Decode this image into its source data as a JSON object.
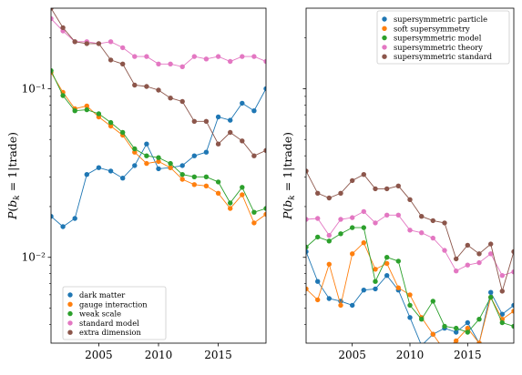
{
  "chart_data": [
    {
      "type": "line",
      "ylabel": "$P(b_k = 1|\\mathrm{trade})$",
      "ylabel_display": "P(b",
      "yscale": "log",
      "xlim": [
        2001,
        2019
      ],
      "ylim": [
        0.0031,
        0.3
      ],
      "xticks": [
        2005,
        2010,
        2015
      ],
      "yticks": [
        {
          "value": 0.1,
          "label": "10⁻¹"
        },
        {
          "value": 0.01,
          "label": "10⁻²"
        }
      ],
      "legend_position": "lower-left",
      "x": [
        2001,
        2002,
        2003,
        2004,
        2005,
        2006,
        2007,
        2008,
        2009,
        2010,
        2011,
        2012,
        2013,
        2014,
        2015,
        2016,
        2017,
        2018,
        2019
      ],
      "series": [
        {
          "name": "dark matter",
          "color": "#1f77b4",
          "values": [
            0.0175,
            0.0152,
            0.017,
            0.031,
            0.034,
            0.0325,
            0.0295,
            0.035,
            0.047,
            0.0335,
            0.034,
            0.035,
            0.04,
            0.042,
            0.068,
            0.065,
            0.082,
            0.074,
            0.1
          ]
        },
        {
          "name": "gauge interaction",
          "color": "#ff7f0e",
          "values": [
            0.125,
            0.095,
            0.076,
            0.079,
            0.068,
            0.06,
            0.053,
            0.042,
            0.036,
            0.037,
            0.034,
            0.029,
            0.027,
            0.0265,
            0.024,
            0.0195,
            0.0235,
            0.016,
            0.018
          ]
        },
        {
          "name": "weak scale",
          "color": "#2ca02c",
          "values": [
            0.128,
            0.091,
            0.074,
            0.075,
            0.071,
            0.063,
            0.055,
            0.044,
            0.04,
            0.039,
            0.036,
            0.031,
            0.03,
            0.03,
            0.028,
            0.021,
            0.026,
            0.0185,
            0.0195
          ]
        },
        {
          "name": "standard model",
          "color": "#e377c2",
          "values": [
            0.26,
            0.22,
            0.19,
            0.19,
            0.185,
            0.19,
            0.175,
            0.155,
            0.155,
            0.14,
            0.14,
            0.135,
            0.155,
            0.15,
            0.155,
            0.145,
            0.155,
            0.155,
            0.145
          ]
        },
        {
          "name": "extra dimension",
          "color": "#8c564b",
          "values": [
            0.3,
            0.23,
            0.19,
            0.185,
            0.185,
            0.148,
            0.14,
            0.105,
            0.103,
            0.098,
            0.088,
            0.084,
            0.064,
            0.064,
            0.047,
            0.055,
            0.049,
            0.04,
            0.043
          ]
        }
      ]
    },
    {
      "type": "line",
      "ylabel": "$P(b_k = 1|\\mathrm{trade})$",
      "ylabel_display": "P(b",
      "yscale": "log",
      "xlim": [
        2001,
        2019
      ],
      "ylim": [
        0.0031,
        0.3
      ],
      "xticks": [
        2005,
        2010,
        2015
      ],
      "yticks": [],
      "legend_position": "upper-right",
      "x": [
        2001,
        2002,
        2003,
        2004,
        2005,
        2006,
        2007,
        2008,
        2009,
        2010,
        2011,
        2012,
        2013,
        2014,
        2015,
        2016,
        2017,
        2018,
        2019
      ],
      "series": [
        {
          "name": "supersymmetric particle",
          "color": "#1f77b4",
          "values": [
            0.0108,
            0.0072,
            0.0057,
            0.0055,
            0.0052,
            0.0064,
            0.0065,
            0.0078,
            0.0064,
            0.0044,
            0.003,
            0.0035,
            0.0038,
            0.0036,
            0.0041,
            0.0031,
            0.0062,
            0.0046,
            0.0052
          ]
        },
        {
          "name": "soft supersymmetry",
          "color": "#ff7f0e",
          "values": [
            0.0065,
            0.0056,
            0.0091,
            0.0052,
            0.0105,
            0.0122,
            0.0085,
            0.0092,
            0.0066,
            0.006,
            0.0044,
            0.0035,
            0.0028,
            0.0032,
            0.0038,
            0.0031,
            0.0058,
            0.0043,
            0.0048
          ]
        },
        {
          "name": "supersymmetric model",
          "color": "#2ca02c",
          "values": [
            0.0115,
            0.0132,
            0.0125,
            0.0138,
            0.015,
            0.015,
            0.0072,
            0.01,
            0.0095,
            0.0052,
            0.0043,
            0.0055,
            0.0039,
            0.0038,
            0.0036,
            0.0043,
            0.0058,
            0.0041,
            0.0039
          ]
        },
        {
          "name": "supersymmetric theory",
          "color": "#e377c2",
          "values": [
            0.0168,
            0.017,
            0.0135,
            0.0168,
            0.0172,
            0.0187,
            0.016,
            0.0178,
            0.0178,
            0.0145,
            0.014,
            0.013,
            0.011,
            0.0083,
            0.009,
            0.0093,
            0.0105,
            0.0078,
            0.0082
          ]
        },
        {
          "name": "supersymmetric standard",
          "color": "#8c564b",
          "values": [
            0.0325,
            0.024,
            0.0225,
            0.024,
            0.0285,
            0.031,
            0.0255,
            0.0255,
            0.0265,
            0.022,
            0.0175,
            0.0165,
            0.016,
            0.0098,
            0.0118,
            0.0105,
            0.012,
            0.0063,
            0.0108
          ]
        }
      ]
    }
  ]
}
